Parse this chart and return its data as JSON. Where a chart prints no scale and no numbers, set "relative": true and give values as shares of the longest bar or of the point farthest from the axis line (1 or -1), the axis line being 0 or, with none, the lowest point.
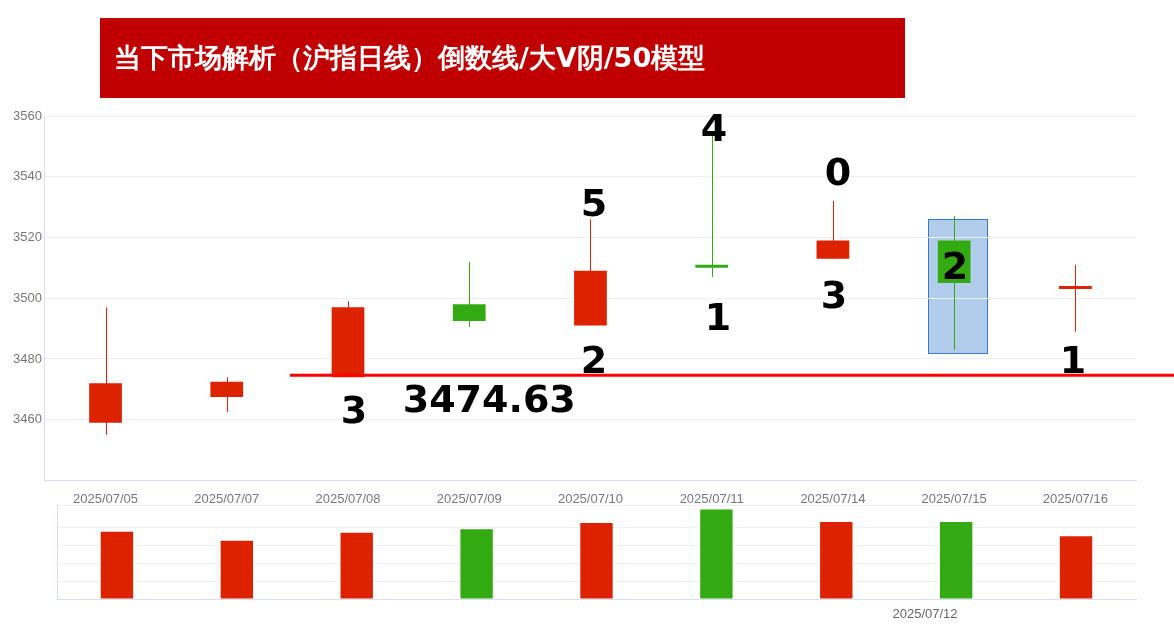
{
  "chart_data": [
    {
      "type": "candlestick",
      "title": "当下市场解析（沪指日线）倒数线/大V阴/50模型",
      "categories": [
        "2025/07/05",
        "2025/07/07",
        "2025/07/08",
        "2025/07/09",
        "2025/07/10",
        "2025/07/11",
        "2025/07/14",
        "2025/07/15",
        "2025/07/16"
      ],
      "ohlc": [
        [
          3459,
          3497,
          3455,
          3472
        ],
        [
          3467.5,
          3474,
          3462.5,
          3472.5
        ],
        [
          3474,
          3499,
          3474,
          3497
        ],
        [
          3498,
          3512,
          3490.5,
          3492.5
        ],
        [
          3491,
          3526,
          3491,
          3509
        ],
        [
          3511,
          3554,
          3507,
          3510
        ],
        [
          3513,
          3532,
          3513,
          3519
        ],
        [
          3519,
          3527,
          3483,
          3505
        ],
        [
          3503,
          3511,
          3489,
          3504
        ]
      ],
      "colors": [
        "#dd2200",
        "#dd2200",
        "#dd2200",
        "#33aa11",
        "#dd2200",
        "#33aa11",
        "#dd2200",
        "#33aa11",
        "#dd2200"
      ],
      "ylim": [
        3440,
        3560
      ],
      "yticks": [
        3460,
        3480,
        3500,
        3520,
        3540,
        3560
      ],
      "grid": "y",
      "ref_lines": [
        {
          "axis": "y",
          "value": 3474.63,
          "label": "3474.63",
          "color": "#ff0000"
        }
      ],
      "annotations": [
        "3",
        "5",
        "2",
        "4",
        "1",
        "0",
        "3",
        "2",
        "1",
        "2025/07/12"
      ]
    },
    {
      "type": "bar",
      "relative": true,
      "grid": "y",
      "categories": [
        null,
        null,
        null,
        null,
        null,
        null,
        null,
        null,
        null
      ],
      "values": [
        0.75,
        0.65,
        0.74,
        0.78,
        0.85,
        1,
        0.86,
        0.86,
        0.7
      ],
      "colors": [
        "#dd2200",
        "#dd2200",
        "#dd2200",
        "#33aa11",
        "#dd2200",
        "#33aa11",
        "#dd2200",
        "#33aa11",
        "#dd2200"
      ]
    }
  ]
}
